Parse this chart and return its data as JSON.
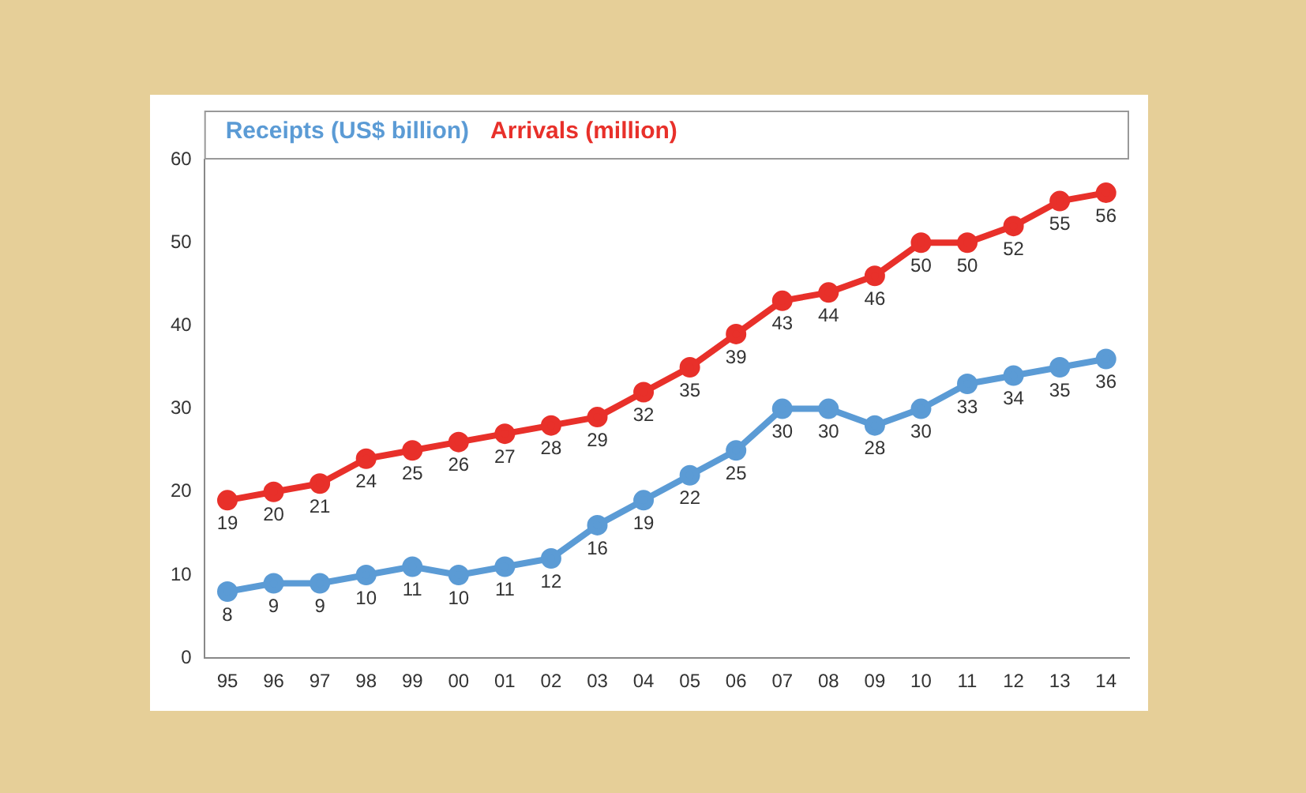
{
  "chart_data": {
    "type": "line",
    "categories": [
      "95",
      "96",
      "97",
      "98",
      "99",
      "00",
      "01",
      "02",
      "03",
      "04",
      "05",
      "06",
      "07",
      "08",
      "09",
      "10",
      "11",
      "12",
      "13",
      "14"
    ],
    "series": [
      {
        "name": "Receipts (US$ billion)",
        "color": "#5b9bd5",
        "values": [
          8,
          9,
          9,
          10,
          11,
          10,
          11,
          12,
          16,
          19,
          22,
          25,
          30,
          30,
          28,
          30,
          33,
          34,
          35,
          36
        ]
      },
      {
        "name": "Arrivals (million)",
        "color": "#e8302a",
        "values": [
          19,
          20,
          21,
          24,
          25,
          26,
          27,
          28,
          29,
          32,
          35,
          39,
          43,
          44,
          46,
          50,
          50,
          52,
          55,
          56
        ]
      }
    ],
    "ylim": [
      0,
      60
    ],
    "yticks": [
      0,
      10,
      20,
      30,
      40,
      50,
      60
    ],
    "grid": false,
    "legend": "top left",
    "marker": "circle",
    "line_style": "solid",
    "data_labels": true
  }
}
